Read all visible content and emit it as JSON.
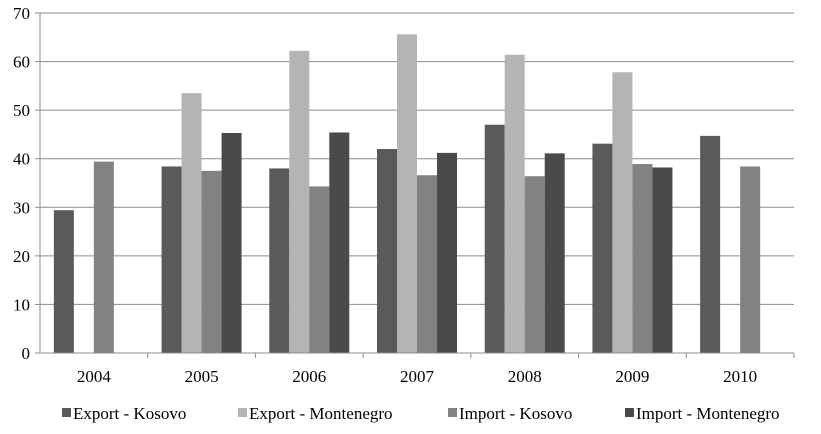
{
  "colors": {
    "export_kosovo": "#5a5a5a",
    "export_montenegro": "#b4b4b4",
    "import_kosovo": "#828282",
    "import_montenegro": "#4a4a4a",
    "gridline": "#8c8c8c",
    "axis": "#8c8c8c"
  },
  "chart_data": {
    "type": "bar",
    "title": "",
    "xlabel": "",
    "ylabel": "",
    "categories": [
      "2004",
      "2005",
      "2006",
      "2007",
      "2008",
      "2009",
      "2010"
    ],
    "ylim": [
      0,
      70
    ],
    "yticks": [
      0,
      10,
      20,
      30,
      40,
      50,
      60,
      70
    ],
    "grid": true,
    "legend_position": "bottom",
    "series": [
      {
        "name": "Export - Kosovo",
        "color": "#5a5a5a",
        "values": [
          29.4,
          38.4,
          38.0,
          42.0,
          47.0,
          43.1,
          44.7
        ]
      },
      {
        "name": "Export - Montenegro",
        "color": "#b4b4b4",
        "values": [
          null,
          53.5,
          62.2,
          65.6,
          61.4,
          57.8,
          null
        ]
      },
      {
        "name": "Import - Kosovo",
        "color": "#828282",
        "values": [
          39.4,
          37.5,
          34.3,
          36.6,
          36.4,
          38.9,
          38.4
        ]
      },
      {
        "name": "Import - Montenegro",
        "color": "#4a4a4a",
        "values": [
          null,
          45.3,
          45.4,
          41.2,
          41.1,
          38.2,
          null
        ]
      }
    ]
  }
}
